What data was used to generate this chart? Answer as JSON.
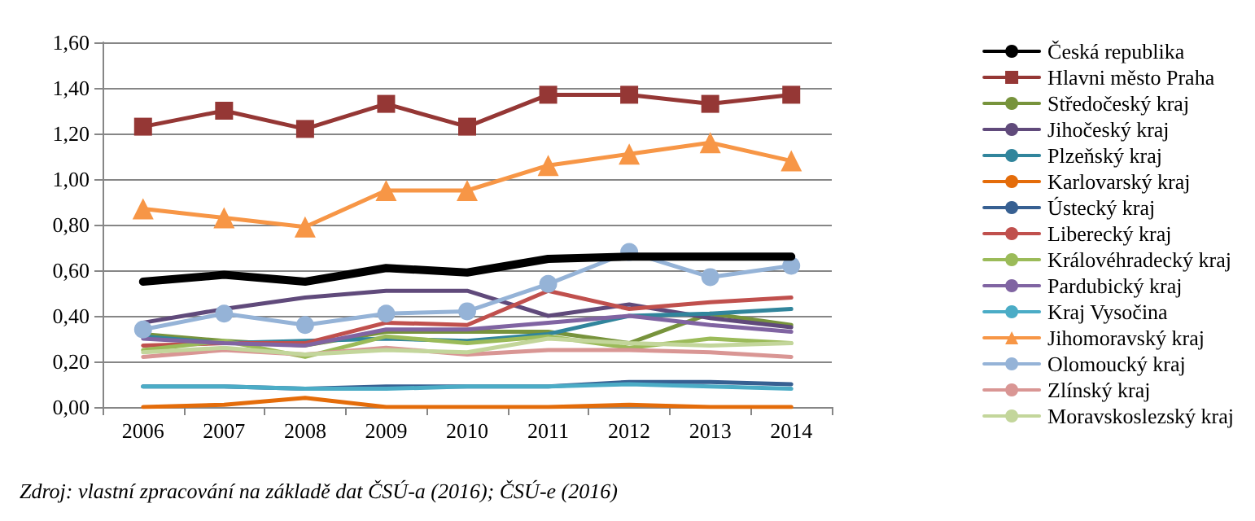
{
  "chart_data": {
    "type": "line",
    "categories": [
      "2006",
      "2007",
      "2008",
      "2009",
      "2010",
      "2011",
      "2012",
      "2013",
      "2014"
    ],
    "ylim": [
      0,
      1.6
    ],
    "yticks": [
      {
        "value": 0,
        "label": "0,00"
      },
      {
        "value": 0.2,
        "label": "0,20"
      },
      {
        "value": 0.4,
        "label": "0,40"
      },
      {
        "value": 0.6,
        "label": "0,60"
      },
      {
        "value": 0.8,
        "label": "0,80"
      },
      {
        "value": 1.0,
        "label": "1,00"
      },
      {
        "value": 1.2,
        "label": "1,20"
      },
      {
        "value": 1.4,
        "label": "1,40"
      },
      {
        "value": 1.6,
        "label": "1,60"
      }
    ],
    "grid": "y",
    "legend": "right",
    "marker": "none",
    "line_style": "solid",
    "annotations": [
      "Zdroj: vlastní zpracování na základě dat ČSÚ-a (2016); ČSÚ-e (2016)"
    ],
    "series": [
      {
        "name": "Česká republika",
        "color": "#000000",
        "values": [
          0.55,
          0.58,
          0.55,
          0.61,
          0.59,
          0.65,
          0.66,
          0.66,
          0.66
        ]
      },
      {
        "name": "Hlavni město Praha",
        "color": "#953735",
        "marker": "square",
        "values": [
          1.23,
          1.3,
          1.22,
          1.33,
          1.23,
          1.37,
          1.37,
          1.33,
          1.37
        ]
      },
      {
        "name": "Středočeský kraj",
        "color": "#77933c",
        "values": [
          0.32,
          0.29,
          0.27,
          0.33,
          0.33,
          0.33,
          0.28,
          0.41,
          0.36
        ]
      },
      {
        "name": "Jihočeský kraj",
        "color": "#604a7b",
        "values": [
          0.37,
          0.43,
          0.48,
          0.51,
          0.51,
          0.4,
          0.45,
          0.39,
          0.35
        ]
      },
      {
        "name": "Plzeňský kraj",
        "color": "#31859c",
        "values": [
          0.31,
          0.28,
          0.29,
          0.3,
          0.29,
          0.32,
          0.4,
          0.41,
          0.43
        ]
      },
      {
        "name": "Karlovarský kraj",
        "color": "#e46c0a",
        "values": [
          0.0,
          0.01,
          0.04,
          0.0,
          0.0,
          0.0,
          0.01,
          0.0,
          0.0
        ]
      },
      {
        "name": "Ústecký kraj",
        "color": "#376092",
        "values": [
          0.09,
          0.09,
          0.08,
          0.09,
          0.09,
          0.09,
          0.11,
          0.11,
          0.1
        ]
      },
      {
        "name": "Liberecký kraj",
        "color": "#c0504d",
        "values": [
          0.27,
          0.28,
          0.28,
          0.37,
          0.36,
          0.51,
          0.43,
          0.46,
          0.48
        ]
      },
      {
        "name": "Královéhradecký kraj",
        "color": "#9bbb59",
        "values": [
          0.25,
          0.29,
          0.22,
          0.31,
          0.28,
          0.31,
          0.26,
          0.3,
          0.28
        ]
      },
      {
        "name": "Pardubický kraj",
        "color": "#8064a2",
        "values": [
          0.3,
          0.28,
          0.27,
          0.34,
          0.34,
          0.37,
          0.4,
          0.36,
          0.33
        ]
      },
      {
        "name": "Kraj Vysočina",
        "color": "#4bacc6",
        "values": [
          0.09,
          0.09,
          0.08,
          0.08,
          0.09,
          0.09,
          0.1,
          0.09,
          0.08
        ]
      },
      {
        "name": "Jihomoravský kraj",
        "color": "#f79646",
        "marker": "triangle",
        "values": [
          0.87,
          0.83,
          0.79,
          0.95,
          0.95,
          1.06,
          1.11,
          1.16,
          1.08
        ]
      },
      {
        "name": "Olomoucký kraj",
        "color": "#95b3d7",
        "marker": "circle",
        "values": [
          0.34,
          0.41,
          0.36,
          0.41,
          0.42,
          0.54,
          0.68,
          0.57,
          0.62
        ]
      },
      {
        "name": "Zlínský kraj",
        "color": "#d99694",
        "values": [
          0.22,
          0.25,
          0.23,
          0.26,
          0.23,
          0.25,
          0.25,
          0.24,
          0.22
        ]
      },
      {
        "name": "Moravskoslezský kraj",
        "color": "#c3d69b",
        "values": [
          0.24,
          0.26,
          0.23,
          0.25,
          0.24,
          0.3,
          0.28,
          0.27,
          0.28
        ]
      }
    ]
  }
}
